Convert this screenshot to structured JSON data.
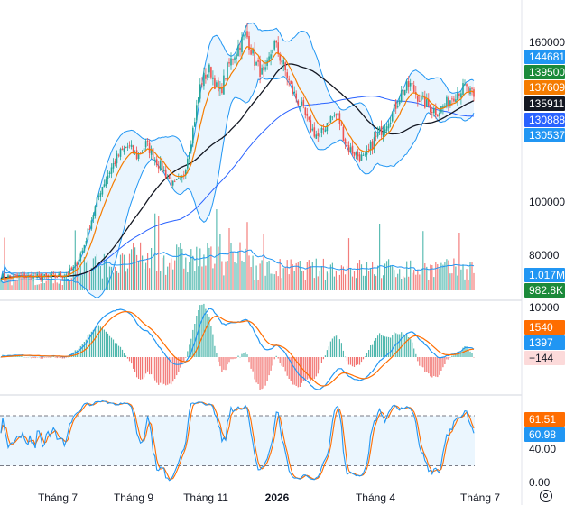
{
  "colors": {
    "up": "#26a69a",
    "down": "#ef5350",
    "bb_line": "#2196f3",
    "bb_fill": "#e3f2fd",
    "ema_fast": "#f57c00",
    "ma_slow": "#131722",
    "ma_long": "#2962ff",
    "macd": "#2196f3",
    "signal": "#ff6d00",
    "stoch_k": "#2196f3",
    "stoch_d": "#ff6d00",
    "stoch_band": "#e3f2fd"
  },
  "chart_data": [
    {
      "type": "candlestick",
      "pane": "price",
      "x_labels": [
        "Tháng 7",
        "Tháng 9",
        "Tháng 11",
        "2026",
        "Tháng 4",
        "Tháng 7"
      ],
      "y_ticks": [
        "160000",
        "100000",
        "80000"
      ],
      "y_tick_values": [
        160000,
        100000,
        80000
      ],
      "price_tags": [
        {
          "label": "144681",
          "value": 144681,
          "bg": "#2196f3",
          "fg": "#ffffff",
          "series": "bollinger-upper"
        },
        {
          "label": "139500",
          "value": 139500,
          "bg": "#1b8a3a",
          "fg": "#ffffff",
          "series": "last-price"
        },
        {
          "label": "137609",
          "value": 137609,
          "bg": "#f57c00",
          "fg": "#ffffff",
          "series": "ema"
        },
        {
          "label": "135911",
          "value": 135911,
          "bg": "#131722",
          "fg": "#ffffff",
          "series": "ma"
        },
        {
          "label": "130888",
          "value": 130888,
          "bg": "#2962ff",
          "fg": "#ffffff",
          "series": "ma-long"
        },
        {
          "label": "130537",
          "value": 130537,
          "bg": "#2196f3",
          "fg": "#ffffff",
          "series": "bollinger-lower"
        }
      ],
      "volume_tags": [
        {
          "label": "1.017M",
          "bg": "#2196f3",
          "fg": "#ffffff"
        },
        {
          "label": "982.8K",
          "bg": "#1b8a3a",
          "fg": "#ffffff"
        }
      ],
      "close_path": [
        [
          0,
          72000
        ],
        [
          15,
          71800
        ],
        [
          30,
          72100
        ],
        [
          45,
          71700
        ],
        [
          60,
          72000
        ],
        [
          70,
          72500
        ],
        [
          80,
          75000
        ],
        [
          90,
          82000
        ],
        [
          100,
          94000
        ],
        [
          110,
          105000
        ],
        [
          120,
          112000
        ],
        [
          130,
          118000
        ],
        [
          140,
          121000
        ],
        [
          150,
          117000
        ],
        [
          160,
          122000
        ],
        [
          170,
          116000
        ],
        [
          180,
          111000
        ],
        [
          190,
          106000
        ],
        [
          200,
          109000
        ],
        [
          210,
          125000
        ],
        [
          220,
          145000
        ],
        [
          230,
          150000
        ],
        [
          240,
          140000
        ],
        [
          250,
          151000
        ],
        [
          260,
          158000
        ],
        [
          270,
          163000
        ],
        [
          280,
          152000
        ],
        [
          290,
          147000
        ],
        [
          300,
          160000
        ],
        [
          310,
          152000
        ],
        [
          320,
          142000
        ],
        [
          330,
          136000
        ],
        [
          340,
          128000
        ],
        [
          350,
          124000
        ],
        [
          360,
          131000
        ],
        [
          370,
          133000
        ],
        [
          380,
          121000
        ],
        [
          390,
          118000
        ],
        [
          400,
          116000
        ],
        [
          410,
          123000
        ],
        [
          420,
          128000
        ],
        [
          430,
          133000
        ],
        [
          440,
          141000
        ],
        [
          450,
          144000
        ],
        [
          460,
          139000
        ],
        [
          470,
          136000
        ],
        [
          480,
          134000
        ],
        [
          490,
          137000
        ],
        [
          500,
          141000
        ],
        [
          510,
          143000
        ],
        [
          520,
          139500
        ]
      ]
    },
    {
      "type": "line",
      "pane": "macd",
      "y_ticks": [
        "10000"
      ],
      "value_tags": [
        {
          "label": "1540",
          "bg": "#ff6d00",
          "fg": "#ffffff"
        },
        {
          "label": "1397",
          "bg": "#2196f3",
          "fg": "#ffffff"
        },
        {
          "label": "−144",
          "bg": "#fcdada",
          "fg": "#131722"
        }
      ]
    },
    {
      "type": "line",
      "pane": "stochastic",
      "y_ticks": [
        "40.00",
        "0.00"
      ],
      "y_tick_values": [
        40,
        0
      ],
      "value_tags": [
        {
          "label": "61.51",
          "bg": "#ff6d00",
          "fg": "#ffffff"
        },
        {
          "label": "60.98",
          "bg": "#2196f3",
          "fg": "#ffffff"
        }
      ],
      "band": [
        20,
        80
      ]
    }
  ]
}
